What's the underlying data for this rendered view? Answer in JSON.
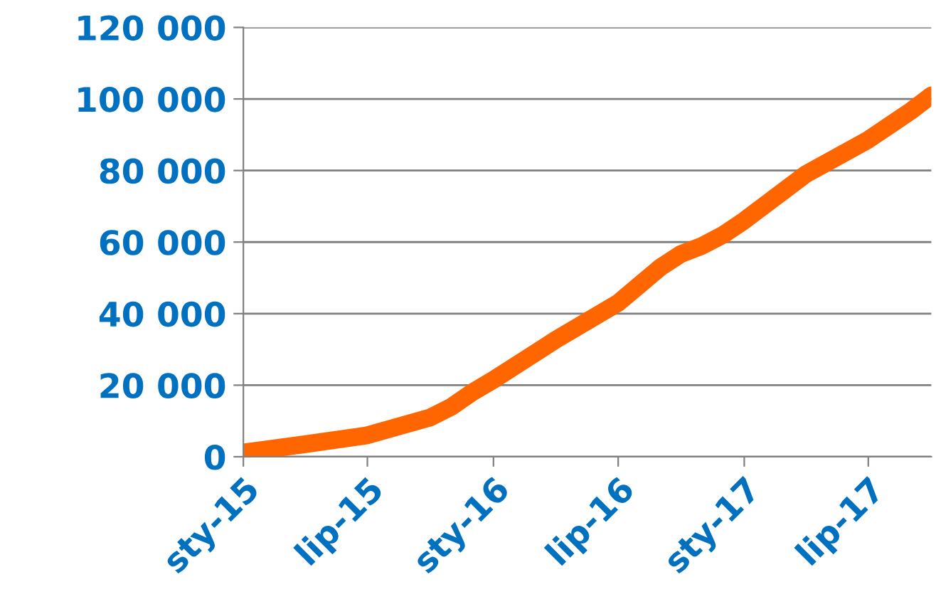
{
  "chart_data": {
    "type": "line",
    "x": [
      "2015-01",
      "2015-04",
      "2015-07",
      "2015-10",
      "2015-11",
      "2015-12",
      "2016-01",
      "2016-04",
      "2016-07",
      "2016-08",
      "2016-09",
      "2016-10",
      "2016-11",
      "2016-12",
      "2017-01",
      "2017-04",
      "2017-07",
      "2017-09",
      "2017-10"
    ],
    "series": [
      {
        "color": "#ff6600",
        "values": [
          1200,
          3500,
          6000,
          11000,
          14000,
          18000,
          21500,
          32700,
          43000,
          48000,
          53000,
          56700,
          59000,
          62000,
          66000,
          79000,
          88600,
          96600,
          101000
        ]
      }
    ],
    "xlim": [
      "2015-01",
      "2017-10"
    ],
    "xticks": [
      {
        "value": "2015-01",
        "label": "sty-15"
      },
      {
        "value": "2015-07",
        "label": "lip-15"
      },
      {
        "value": "2016-01",
        "label": "sty-16"
      },
      {
        "value": "2016-07",
        "label": "lip-16"
      },
      {
        "value": "2017-01",
        "label": "sty-17"
      },
      {
        "value": "2017-07",
        "label": "lip-17"
      }
    ],
    "ylim": [
      0,
      120000
    ],
    "yticks": [
      0,
      {
        "value": 20000,
        "label": "20 000"
      },
      {
        "value": 40000,
        "label": "40 000"
      },
      {
        "value": 60000,
        "label": "60 000"
      },
      {
        "value": 80000,
        "label": "80 000"
      },
      {
        "value": 100000,
        "label": "100 000"
      },
      {
        "value": 120000,
        "label": "120 000"
      }
    ],
    "grid": "y",
    "marker": "none",
    "line_style": "solid",
    "legend": false
  }
}
